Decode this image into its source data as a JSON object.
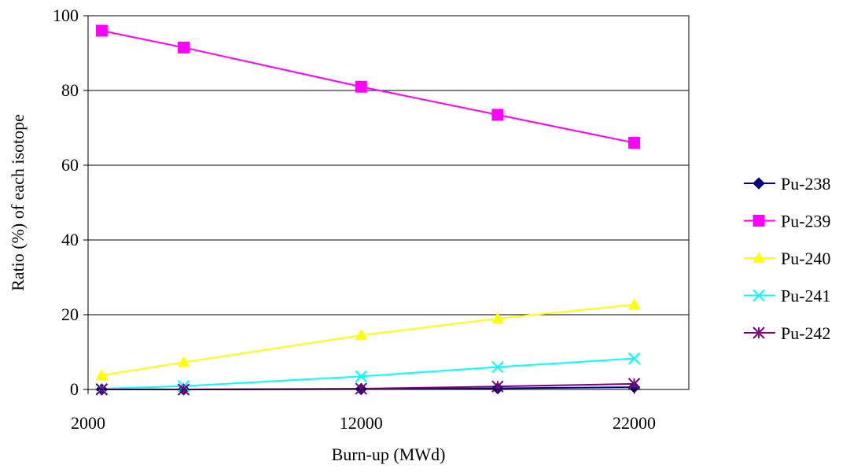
{
  "chart_data": {
    "type": "line",
    "xlabel": "Burn-up (MWd)",
    "ylabel": "Ratio (%) of each isotope",
    "xlim": [
      2000,
      24000
    ],
    "ylim": [
      0,
      100
    ],
    "x_ticks": [
      2000,
      12000,
      22000
    ],
    "y_ticks": [
      0,
      20,
      40,
      60,
      80,
      100
    ],
    "x_tick_labels": [
      "2000",
      "12000",
      "22000"
    ],
    "y_tick_labels": [
      "0",
      "20",
      "40",
      "60",
      "80",
      "100"
    ],
    "grid": "horizontal",
    "legend_position": "right",
    "x": [
      2500,
      5500,
      12000,
      17000,
      22000
    ],
    "series": [
      {
        "name": "Pu-238",
        "values": [
          0,
          0,
          0.1,
          0.3,
          0.6
        ],
        "color": "#000080",
        "marker": "diamond"
      },
      {
        "name": "Pu-239",
        "values": [
          96,
          91.5,
          81,
          73.5,
          66
        ],
        "color": "#FF00FF",
        "marker": "square"
      },
      {
        "name": "Pu-240",
        "values": [
          3.8,
          7.3,
          14.5,
          19,
          22.7
        ],
        "color": "#FFFF00",
        "marker": "triangle"
      },
      {
        "name": "Pu-241",
        "values": [
          0.2,
          0.9,
          3.5,
          6,
          8.3
        ],
        "color": "#00FFFF",
        "marker": "x"
      },
      {
        "name": "Pu-242",
        "values": [
          0,
          0,
          0.2,
          0.8,
          1.5
        ],
        "color": "#800080",
        "marker": "star"
      }
    ]
  }
}
